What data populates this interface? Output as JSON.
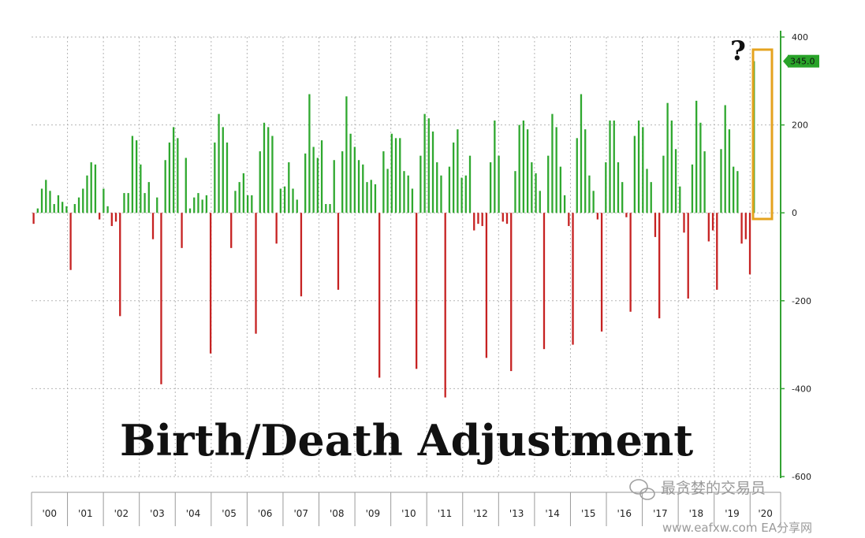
{
  "chart_data": {
    "type": "bar",
    "title": "Birth/Death Adjustment",
    "ylim": [
      -600,
      400
    ],
    "y_ticks": [
      400,
      200,
      0,
      -200,
      -400,
      -600
    ],
    "y_tick_labels": [
      "400",
      "200",
      "0",
      "-200",
      "-400",
      "-600"
    ],
    "x_tick_labels": [
      "'00",
      "'01",
      "'02",
      "'03",
      "'04",
      "'05",
      "'06",
      "'07",
      "'08",
      "'09",
      "'10",
      "'11",
      "'12",
      "'13",
      "'14",
      "'15",
      "'16",
      "'17",
      "'18",
      "'19",
      "'20"
    ],
    "grid": true,
    "annotation": "?",
    "last_value_label": "345.0",
    "last_value": 345.0,
    "series": [
      {
        "values": [
          -25,
          10,
          55,
          75,
          50,
          20,
          40,
          25,
          15,
          -130,
          20,
          35,
          55,
          85,
          115,
          110,
          -15,
          55,
          15,
          -30,
          -20,
          -235,
          45,
          45,
          175,
          165,
          110,
          45,
          70,
          -60,
          35,
          -390,
          120,
          160,
          195,
          170,
          -80,
          125,
          10,
          35,
          45,
          30,
          40,
          -320,
          160,
          225,
          195,
          160,
          -80,
          50,
          70,
          90,
          40,
          40,
          -275,
          140,
          205,
          195,
          175,
          -70,
          55,
          60,
          115,
          55,
          30,
          -190,
          135,
          270,
          150,
          125,
          165,
          20,
          20,
          120,
          -175,
          140,
          265,
          180,
          150,
          120,
          110,
          70,
          75,
          65,
          -375,
          140,
          100,
          180,
          170,
          170,
          95,
          85,
          55,
          -355,
          130,
          225,
          215,
          185,
          115,
          85,
          -420,
          105,
          160,
          190,
          80,
          85,
          130,
          -40,
          -25,
          -30,
          -330,
          115,
          210,
          130,
          -20,
          -25,
          -360,
          95,
          200,
          210,
          190,
          115,
          90,
          50,
          -310,
          130,
          225,
          195,
          105,
          40,
          -30,
          -300,
          170,
          270,
          190,
          85,
          50,
          -15,
          -270,
          115,
          210,
          210,
          115,
          70,
          -10,
          -225,
          175,
          210,
          195,
          100,
          70,
          -55,
          -240,
          130,
          250,
          210,
          145,
          60,
          -45,
          -195,
          110,
          255,
          205,
          140,
          -65,
          -40,
          -175,
          145,
          245,
          190,
          105,
          95,
          -70,
          -60,
          -140,
          345
        ]
      }
    ]
  },
  "watermark": {
    "top_text": "最贪婪的交易员",
    "bottom_text": "www.eafxw.com   EA分享网"
  },
  "colors": {
    "positive_bar": "#2fa82f",
    "negative_bar": "#c62222",
    "axis": "#33a333",
    "last_value_badge": "#29a329",
    "highlight_box": "#e5a31f"
  }
}
